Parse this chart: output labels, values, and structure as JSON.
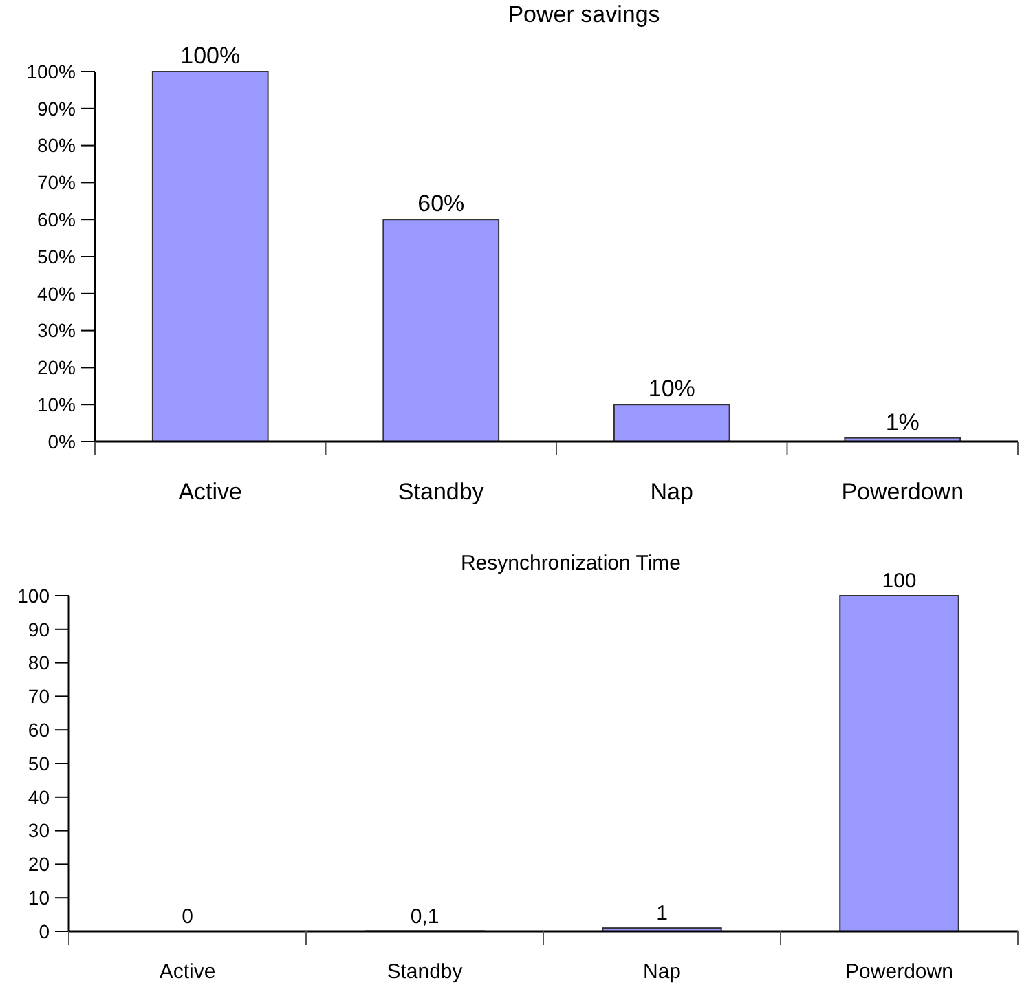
{
  "chart_data": [
    {
      "type": "bar",
      "title": "Power savings",
      "categories": [
        "Active",
        "Standby",
        "Nap",
        "Powerdown"
      ],
      "values": [
        100,
        60,
        10,
        1
      ],
      "value_labels": [
        "100%",
        "60%",
        "10%",
        "1%"
      ],
      "color": "#9999ff",
      "ylim": [
        0,
        100
      ],
      "yticks": [
        {
          "value": 0,
          "label": "0%"
        },
        {
          "value": 10,
          "label": "10%"
        },
        {
          "value": 20,
          "label": "20%"
        },
        {
          "value": 30,
          "label": "30%"
        },
        {
          "value": 40,
          "label": "40%"
        },
        {
          "value": 50,
          "label": "50%"
        },
        {
          "value": 60,
          "label": "60%"
        },
        {
          "value": 70,
          "label": "70%"
        },
        {
          "value": 80,
          "label": "80%"
        },
        {
          "value": 90,
          "label": "90%"
        },
        {
          "value": 100,
          "label": "100%"
        }
      ]
    },
    {
      "type": "bar",
      "title": "Resynchronization Time",
      "categories": [
        "Active",
        "Standby",
        "Nap",
        "Powerdown"
      ],
      "values": [
        0,
        0.1,
        1,
        100
      ],
      "value_labels": [
        "0",
        "0,1",
        "1",
        "100"
      ],
      "color": "#9999ff",
      "ylim": [
        0,
        100
      ],
      "yticks": [
        0,
        10,
        20,
        30,
        40,
        50,
        60,
        70,
        80,
        90,
        100
      ]
    }
  ]
}
